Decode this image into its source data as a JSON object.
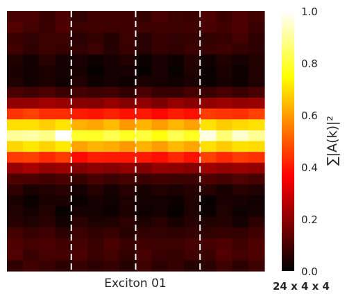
{
  "chart_data": {
    "type": "heatmap",
    "xlabel": "Exciton 01",
    "colorbar_label": "∑|A(k)|²",
    "colorbar_ticks": [
      "0.0",
      "0.2",
      "0.4",
      "0.6",
      "0.8",
      "1.0"
    ],
    "colorbar_range": [
      0,
      1
    ],
    "colormap": "hot",
    "grid_label": "24 x 4 x 4",
    "n_cols": 16,
    "n_rows": 24,
    "dashed_line_after_cols": [
      4,
      8,
      12
    ],
    "dashed_line_color": "#ffffff",
    "row_profile": [
      0.1,
      0.1,
      0.08,
      0.08,
      0.04,
      0.03,
      0.03,
      0.1,
      0.22,
      0.45,
      0.7,
      0.9,
      0.7,
      0.45,
      0.22,
      0.1,
      0.05,
      0.03,
      0.03,
      0.05,
      0.08,
      0.1,
      0.1,
      0.08
    ],
    "col_weights": [
      1.0,
      1.0,
      0.98,
      1.0,
      0.88,
      0.88,
      0.9,
      0.87,
      0.89,
      0.86,
      0.9,
      0.88,
      1.0,
      0.98,
      1.0,
      1.0
    ],
    "peak_cells": [
      {
        "row": 11,
        "col": 3,
        "value": 1.0
      },
      {
        "row": 11,
        "col": 12,
        "value": 0.97
      },
      {
        "row": 11,
        "col": 14,
        "value": 0.95
      }
    ]
  }
}
